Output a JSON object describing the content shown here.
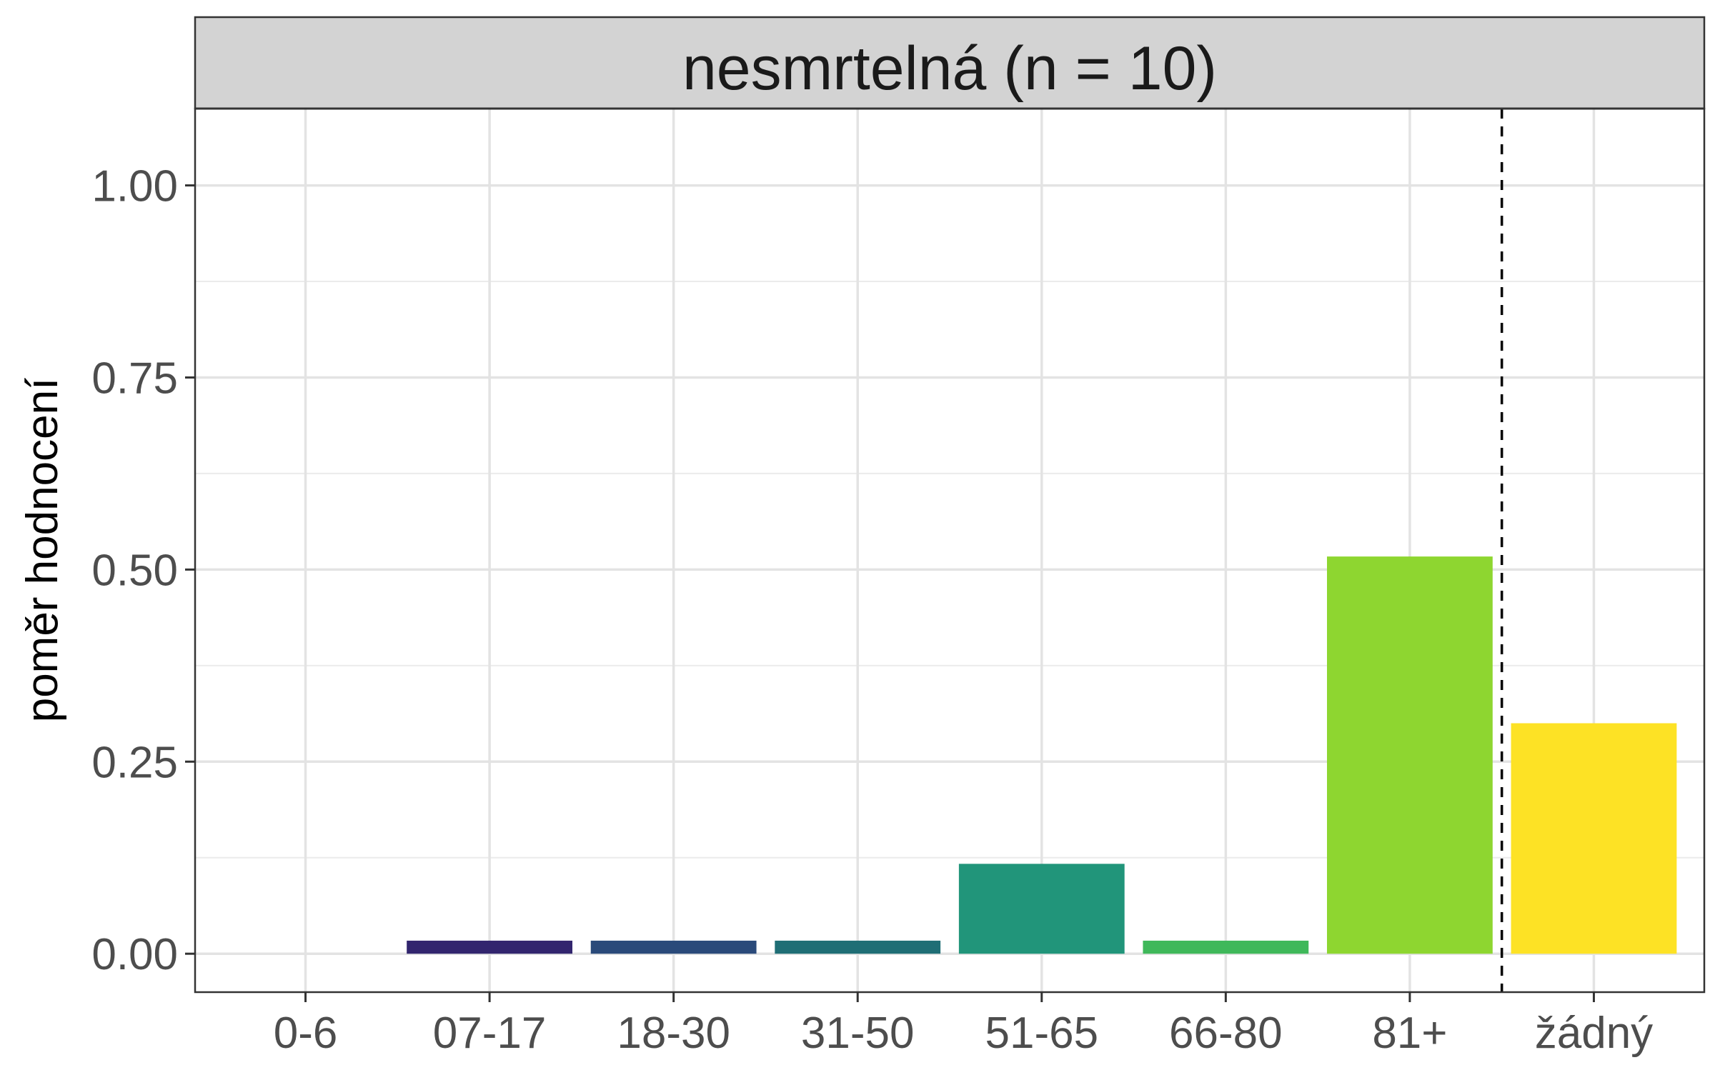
{
  "chart_data": {
    "type": "bar",
    "title": "nesmrtelná (n = 10)",
    "xlabel": "",
    "ylabel": "poměr hodnocení",
    "categories": [
      "0-6",
      "07-17",
      "18-30",
      "31-50",
      "51-65",
      "66-80",
      "81+",
      "žádný"
    ],
    "values": [
      0.0,
      0.017,
      0.017,
      0.017,
      0.117,
      0.017,
      0.517,
      0.3
    ],
    "colors": [
      "#440154",
      "#32256E",
      "#2A4A7A",
      "#1F6E75",
      "#21957A",
      "#3FB85A",
      "#8ED630",
      "#FDE225"
    ],
    "ylim": [
      -0.05,
      1.1
    ],
    "yticks": [
      0.0,
      0.25,
      0.5,
      0.75,
      1.0
    ],
    "ytick_labels": [
      "0.00",
      "0.25",
      "0.50",
      "0.75",
      "1.00"
    ],
    "grid": true,
    "reference_line": {
      "style": "dashed",
      "between": [
        "81+",
        "žádný"
      ]
    }
  }
}
